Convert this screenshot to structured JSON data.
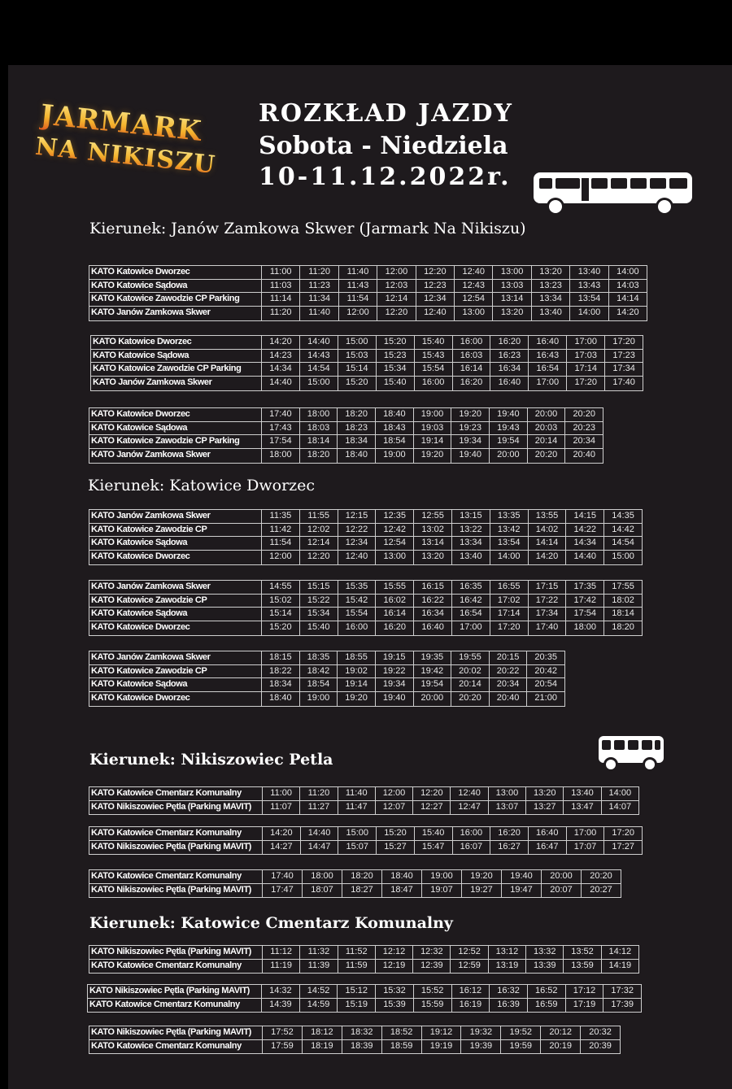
{
  "logo": {
    "line1": "JARMARK",
    "line2": "NA NIKISZU"
  },
  "header": {
    "title": "ROZKŁAD  JAZDY",
    "days": "Sobota - Niedziela",
    "dates": "10-11.12.2022r."
  },
  "icons": [
    "bus-icon",
    "bus-icon"
  ],
  "colors": {
    "background": "#1e1a1d",
    "text": "#ffffff",
    "grid": "#cfcfcf"
  },
  "sections": [
    {
      "heading": "Kierunek: Janów Zamkowa Skwer (Jarmark Na Nikiszu)",
      "tables": [
        {
          "stops": [
            "KATO Katowice Dworzec",
            "KATO Katowice Sądowa",
            "KATO Katowice Zawodzie CP Parking",
            "KATO Janów Zamkowa Skwer"
          ],
          "times": [
            [
              "11:00",
              "11:20",
              "11:40",
              "12:00",
              "12:20",
              "12:40",
              "13:00",
              "13:20",
              "13:40",
              "14:00"
            ],
            [
              "11:03",
              "11:23",
              "11:43",
              "12:03",
              "12:23",
              "12:43",
              "13:03",
              "13:23",
              "13:43",
              "14:03"
            ],
            [
              "11:14",
              "11:34",
              "11:54",
              "12:14",
              "12:34",
              "12:54",
              "13:14",
              "13:34",
              "13:54",
              "14:14"
            ],
            [
              "11:20",
              "11:40",
              "12:00",
              "12:20",
              "12:40",
              "13:00",
              "13:20",
              "13:40",
              "14:00",
              "14:20"
            ]
          ]
        },
        {
          "stops": [
            "KATO Katowice Dworzec",
            "KATO Katowice Sądowa",
            "KATO Katowice Zawodzie CP Parking",
            "KATO Janów Zamkowa Skwer"
          ],
          "times": [
            [
              "14:20",
              "14:40",
              "15:00",
              "15:20",
              "15:40",
              "16:00",
              "16:20",
              "16:40",
              "17:00",
              "17:20"
            ],
            [
              "14:23",
              "14:43",
              "15:03",
              "15:23",
              "15:43",
              "16:03",
              "16:23",
              "16:43",
              "17:03",
              "17:23"
            ],
            [
              "14:34",
              "14:54",
              "15:14",
              "15:34",
              "15:54",
              "16:14",
              "16:34",
              "16:54",
              "17:14",
              "17:34"
            ],
            [
              "14:40",
              "15:00",
              "15:20",
              "15:40",
              "16:00",
              "16:20",
              "16:40",
              "17:00",
              "17:20",
              "17:40"
            ]
          ]
        },
        {
          "stops": [
            "KATO Katowice Dworzec",
            "KATO Katowice Sądowa",
            "KATO Katowice Zawodzie CP Parking",
            "KATO Janów Zamkowa Skwer"
          ],
          "times": [
            [
              "17:40",
              "18:00",
              "18:20",
              "18:40",
              "19:00",
              "19:20",
              "19:40",
              "20:00",
              "20:20"
            ],
            [
              "17:43",
              "18:03",
              "18:23",
              "18:43",
              "19:03",
              "19:23",
              "19:43",
              "20:03",
              "20:23"
            ],
            [
              "17:54",
              "18:14",
              "18:34",
              "18:54",
              "19:14",
              "19:34",
              "19:54",
              "20:14",
              "20:34"
            ],
            [
              "18:00",
              "18:20",
              "18:40",
              "19:00",
              "19:20",
              "19:40",
              "20:00",
              "20:20",
              "20:40"
            ]
          ]
        }
      ]
    },
    {
      "heading": "Kierunek: Katowice Dworzec",
      "tables": [
        {
          "stops": [
            "KATO Janów Zamkowa Skwer",
            "KATO Katowice Zawodzie CP",
            "KATO Katowice Sądowa",
            "KATO Katowice Dworzec"
          ],
          "times": [
            [
              "11:35",
              "11:55",
              "12:15",
              "12:35",
              "12:55",
              "13:15",
              "13:35",
              "13:55",
              "14:15",
              "14:35"
            ],
            [
              "11:42",
              "12:02",
              "12:22",
              "12:42",
              "13:02",
              "13:22",
              "13:42",
              "14:02",
              "14:22",
              "14:42"
            ],
            [
              "11:54",
              "12:14",
              "12:34",
              "12:54",
              "13:14",
              "13:34",
              "13:54",
              "14:14",
              "14:34",
              "14:54"
            ],
            [
              "12:00",
              "12:20",
              "12:40",
              "13:00",
              "13:20",
              "13:40",
              "14:00",
              "14:20",
              "14:40",
              "15:00"
            ]
          ]
        },
        {
          "stops": [
            "KATO Janów Zamkowa Skwer",
            "KATO Katowice Zawodzie CP",
            "KATO Katowice Sądowa",
            "KATO Katowice Dworzec"
          ],
          "times": [
            [
              "14:55",
              "15:15",
              "15:35",
              "15:55",
              "16:15",
              "16:35",
              "16:55",
              "17:15",
              "17:35",
              "17:55"
            ],
            [
              "15:02",
              "15:22",
              "15:42",
              "16:02",
              "16:22",
              "16:42",
              "17:02",
              "17:22",
              "17:42",
              "18:02"
            ],
            [
              "15:14",
              "15:34",
              "15:54",
              "16:14",
              "16:34",
              "16:54",
              "17:14",
              "17:34",
              "17:54",
              "18:14"
            ],
            [
              "15:20",
              "15:40",
              "16:00",
              "16:20",
              "16:40",
              "17:00",
              "17:20",
              "17:40",
              "18:00",
              "18:20"
            ]
          ]
        },
        {
          "stops": [
            "KATO Janów Zamkowa Skwer",
            "KATO Katowice Zawodzie CP",
            "KATO Katowice Sądowa",
            "KATO Katowice Dworzec"
          ],
          "times": [
            [
              "18:15",
              "18:35",
              "18:55",
              "19:15",
              "19:35",
              "19:55",
              "20:15",
              "20:35"
            ],
            [
              "18:22",
              "18:42",
              "19:02",
              "19:22",
              "19:42",
              "20:02",
              "20:22",
              "20:42"
            ],
            [
              "18:34",
              "18:54",
              "19:14",
              "19:34",
              "19:54",
              "20:14",
              "20:34",
              "20:54"
            ],
            [
              "18:40",
              "19:00",
              "19:20",
              "19:40",
              "20:00",
              "20:20",
              "20:40",
              "21:00"
            ]
          ]
        }
      ]
    },
    {
      "heading": "Kierunek: Nikiszowiec Petla",
      "tables": [
        {
          "stops": [
            "KATO Katowice Cmentarz Komunalny",
            "KATO Nikiszowiec Pętla (Parking MAVIT)"
          ],
          "times": [
            [
              "11:00",
              "11:20",
              "11:40",
              "12:00",
              "12:20",
              "12:40",
              "13:00",
              "13:20",
              "13:40",
              "14:00"
            ],
            [
              "11:07",
              "11:27",
              "11:47",
              "12:07",
              "12:27",
              "12:47",
              "13:07",
              "13:27",
              "13:47",
              "14:07"
            ]
          ]
        },
        {
          "stops": [
            "KATO Katowice Cmentarz Komunalny",
            "KATO Nikiszowiec Pętla (Parking MAVIT)"
          ],
          "times": [
            [
              "14:20",
              "14:40",
              "15:00",
              "15:20",
              "15:40",
              "16:00",
              "16:20",
              "16:40",
              "17:00",
              "17:20"
            ],
            [
              "14:27",
              "14:47",
              "15:07",
              "15:27",
              "15:47",
              "16:07",
              "16:27",
              "16:47",
              "17:07",
              "17:27"
            ]
          ]
        },
        {
          "stops": [
            "KATO Katowice Cmentarz Komunalny",
            "KATO Nikiszowiec Pętla (Parking MAVIT)"
          ],
          "times": [
            [
              "17:40",
              "18:00",
              "18:20",
              "18:40",
              "19:00",
              "19:20",
              "19:40",
              "20:00",
              "20:20"
            ],
            [
              "17:47",
              "18:07",
              "18:27",
              "18:47",
              "19:07",
              "19:27",
              "19:47",
              "20:07",
              "20:27"
            ]
          ]
        }
      ]
    },
    {
      "heading": "Kierunek: Katowice Cmentarz Komunalny",
      "tables": [
        {
          "stops": [
            "KATO Nikiszowiec Pętla (Parking MAVIT)",
            "KATO Katowice Cmentarz Komunalny"
          ],
          "times": [
            [
              "11:12",
              "11:32",
              "11:52",
              "12:12",
              "12:32",
              "12:52",
              "13:12",
              "13:32",
              "13:52",
              "14:12"
            ],
            [
              "11:19",
              "11:39",
              "11:59",
              "12:19",
              "12:39",
              "12:59",
              "13:19",
              "13:39",
              "13:59",
              "14:19"
            ]
          ]
        },
        {
          "stops": [
            "KATO Nikiszowiec Pętla (Parking MAVIT)",
            "KATO Katowice Cmentarz Komunalny"
          ],
          "times": [
            [
              "14:32",
              "14:52",
              "15:12",
              "15:32",
              "15:52",
              "16:12",
              "16:32",
              "16:52",
              "17:12",
              "17:32"
            ],
            [
              "14:39",
              "14:59",
              "15:19",
              "15:39",
              "15:59",
              "16:19",
              "16:39",
              "16:59",
              "17:19",
              "17:39"
            ]
          ]
        },
        {
          "stops": [
            "KATO Nikiszowiec Pętla (Parking MAVIT)",
            "KATO Katowice Cmentarz Komunalny"
          ],
          "times": [
            [
              "17:52",
              "18:12",
              "18:32",
              "18:52",
              "19:12",
              "19:32",
              "19:52",
              "20:12",
              "20:32"
            ],
            [
              "17:59",
              "18:19",
              "18:39",
              "18:59",
              "19:19",
              "19:39",
              "19:59",
              "20:19",
              "20:39"
            ]
          ]
        }
      ]
    }
  ]
}
